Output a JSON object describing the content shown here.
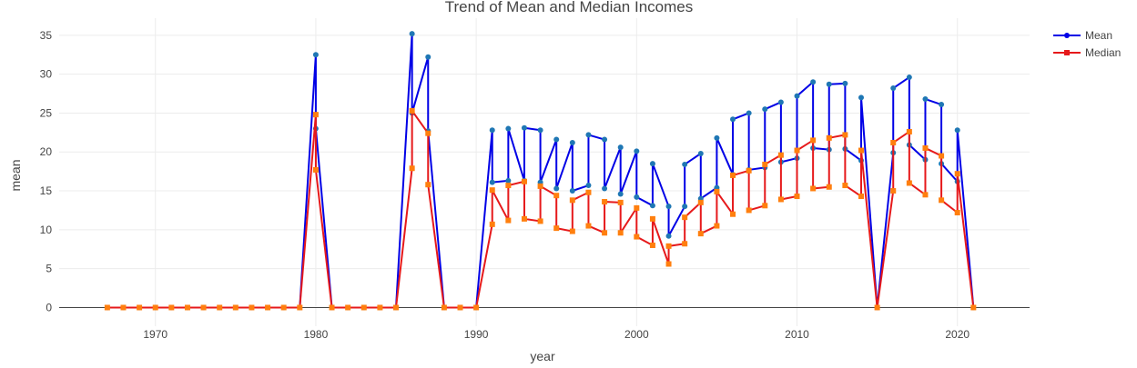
{
  "chart_data": {
    "type": "line",
    "title": "Trend of Mean and Median Incomes",
    "xlabel": "year",
    "ylabel": "mean",
    "xlim": [
      1964,
      2024.5
    ],
    "ylim": [
      -2.4,
      37.2
    ],
    "x_ticks": [
      1970,
      1980,
      1990,
      2000,
      2010,
      2020
    ],
    "y_ticks": [
      0,
      5,
      10,
      15,
      20,
      25,
      30,
      35
    ],
    "grid": true,
    "legend_placement": "top-right",
    "colors": {
      "mean_line": "#0000e6",
      "mean_marker": "#1f77b4",
      "median_line": "#e6191b",
      "median_marker": "#ff7f0e",
      "grid": "#ececec",
      "zero_line": "#444444",
      "text": "#444444"
    },
    "series": [
      {
        "name": "Mean",
        "points": [
          [
            1967,
            0
          ],
          [
            1968,
            0
          ],
          [
            1969,
            0
          ],
          [
            1970,
            0
          ],
          [
            1971,
            0
          ],
          [
            1972,
            0
          ],
          [
            1973,
            0
          ],
          [
            1974,
            0
          ],
          [
            1975,
            0
          ],
          [
            1976,
            0
          ],
          [
            1977,
            0
          ],
          [
            1978,
            0
          ],
          [
            1979,
            0
          ],
          [
            1980,
            32.5
          ],
          [
            1980,
            23.0
          ],
          [
            1981,
            0
          ],
          [
            1982,
            0
          ],
          [
            1983,
            0
          ],
          [
            1984,
            0
          ],
          [
            1985,
            0
          ],
          [
            1986,
            35.2
          ],
          [
            1986,
            25.0
          ],
          [
            1987,
            32.2
          ],
          [
            1987,
            22.7
          ],
          [
            1988,
            0
          ],
          [
            1989,
            0
          ],
          [
            1990,
            0
          ],
          [
            1991,
            22.8
          ],
          [
            1991,
            16.1
          ],
          [
            1992,
            16.3
          ],
          [
            1992,
            23.0
          ],
          [
            1993,
            16.3
          ],
          [
            1993,
            23.1
          ],
          [
            1994,
            22.8
          ],
          [
            1994,
            16.1
          ],
          [
            1995,
            21.6
          ],
          [
            1995,
            15.3
          ],
          [
            1996,
            21.2
          ],
          [
            1996,
            15.0
          ],
          [
            1997,
            15.7
          ],
          [
            1997,
            22.2
          ],
          [
            1998,
            21.6
          ],
          [
            1998,
            15.3
          ],
          [
            1999,
            20.6
          ],
          [
            1999,
            14.6
          ],
          [
            2000,
            20.1
          ],
          [
            2000,
            14.2
          ],
          [
            2001,
            13.1
          ],
          [
            2001,
            18.5
          ],
          [
            2002,
            13.0
          ],
          [
            2002,
            9.2
          ],
          [
            2003,
            13.0
          ],
          [
            2003,
            18.4
          ],
          [
            2004,
            19.8
          ],
          [
            2004,
            14.0
          ],
          [
            2005,
            15.4
          ],
          [
            2005,
            21.8
          ],
          [
            2006,
            17.1
          ],
          [
            2006,
            24.2
          ],
          [
            2007,
            25.0
          ],
          [
            2007,
            17.7
          ],
          [
            2008,
            18.0
          ],
          [
            2008,
            25.5
          ],
          [
            2009,
            26.4
          ],
          [
            2009,
            18.7
          ],
          [
            2010,
            19.2
          ],
          [
            2010,
            27.2
          ],
          [
            2011,
            29.0
          ],
          [
            2011,
            20.5
          ],
          [
            2012,
            20.3
          ],
          [
            2012,
            28.7
          ],
          [
            2013,
            28.8
          ],
          [
            2013,
            20.4
          ],
          [
            2014,
            18.9
          ],
          [
            2014,
            27.0
          ],
          [
            2015,
            0
          ],
          [
            2016,
            19.9
          ],
          [
            2016,
            28.2
          ],
          [
            2017,
            29.6
          ],
          [
            2017,
            20.9
          ],
          [
            2018,
            19.0
          ],
          [
            2018,
            26.8
          ],
          [
            2019,
            26.1
          ],
          [
            2019,
            18.5
          ],
          [
            2020,
            16.2
          ],
          [
            2020,
            22.8
          ],
          [
            2021,
            0
          ]
        ]
      },
      {
        "name": "Median",
        "points": [
          [
            1967,
            0
          ],
          [
            1968,
            0
          ],
          [
            1969,
            0
          ],
          [
            1970,
            0
          ],
          [
            1971,
            0
          ],
          [
            1972,
            0
          ],
          [
            1973,
            0
          ],
          [
            1974,
            0
          ],
          [
            1975,
            0
          ],
          [
            1976,
            0
          ],
          [
            1977,
            0
          ],
          [
            1978,
            0
          ],
          [
            1979,
            0
          ],
          [
            1980,
            24.8
          ],
          [
            1980,
            17.7
          ],
          [
            1981,
            0
          ],
          [
            1982,
            0
          ],
          [
            1983,
            0
          ],
          [
            1984,
            0
          ],
          [
            1985,
            0
          ],
          [
            1986,
            17.9
          ],
          [
            1986,
            25.3
          ],
          [
            1987,
            22.4
          ],
          [
            1987,
            15.8
          ],
          [
            1988,
            0
          ],
          [
            1989,
            0
          ],
          [
            1990,
            0
          ],
          [
            1991,
            10.7
          ],
          [
            1991,
            15.1
          ],
          [
            1992,
            11.2
          ],
          [
            1992,
            15.7
          ],
          [
            1993,
            16.2
          ],
          [
            1993,
            11.4
          ],
          [
            1994,
            11.1
          ],
          [
            1994,
            15.6
          ],
          [
            1995,
            14.4
          ],
          [
            1995,
            10.2
          ],
          [
            1996,
            9.8
          ],
          [
            1996,
            13.8
          ],
          [
            1997,
            14.8
          ],
          [
            1997,
            10.5
          ],
          [
            1998,
            9.6
          ],
          [
            1998,
            13.6
          ],
          [
            1999,
            13.5
          ],
          [
            1999,
            9.6
          ],
          [
            2000,
            12.8
          ],
          [
            2000,
            9.1
          ],
          [
            2001,
            8.0
          ],
          [
            2001,
            11.4
          ],
          [
            2002,
            5.6
          ],
          [
            2002,
            7.9
          ],
          [
            2003,
            8.2
          ],
          [
            2003,
            11.6
          ],
          [
            2004,
            13.5
          ],
          [
            2004,
            9.5
          ],
          [
            2005,
            10.5
          ],
          [
            2005,
            14.9
          ],
          [
            2006,
            12.0
          ],
          [
            2006,
            17.0
          ],
          [
            2007,
            17.6
          ],
          [
            2007,
            12.5
          ],
          [
            2008,
            13.1
          ],
          [
            2008,
            18.4
          ],
          [
            2009,
            19.6
          ],
          [
            2009,
            13.9
          ],
          [
            2010,
            14.3
          ],
          [
            2010,
            20.2
          ],
          [
            2011,
            21.5
          ],
          [
            2011,
            15.3
          ],
          [
            2012,
            15.5
          ],
          [
            2012,
            21.8
          ],
          [
            2013,
            22.2
          ],
          [
            2013,
            15.7
          ],
          [
            2014,
            14.3
          ],
          [
            2014,
            20.2
          ],
          [
            2015,
            0
          ],
          [
            2016,
            15.0
          ],
          [
            2016,
            21.2
          ],
          [
            2017,
            22.6
          ],
          [
            2017,
            16.0
          ],
          [
            2018,
            14.5
          ],
          [
            2018,
            20.5
          ],
          [
            2019,
            19.5
          ],
          [
            2019,
            13.8
          ],
          [
            2020,
            12.2
          ],
          [
            2020,
            17.2
          ],
          [
            2021,
            0
          ]
        ]
      }
    ]
  }
}
